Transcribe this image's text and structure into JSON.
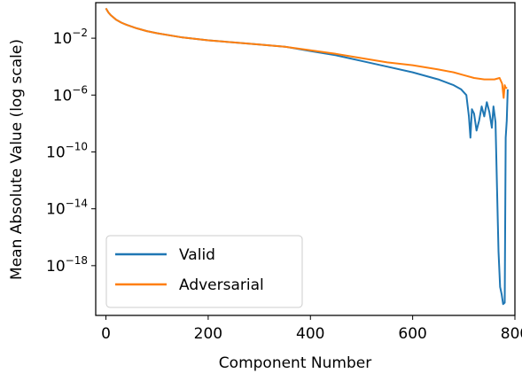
{
  "chart_data": {
    "type": "line",
    "title": "",
    "xlabel": "Component Number",
    "ylabel": "Mean Absolute Value (log scale)",
    "y_scale": "log",
    "xlim": [
      -20,
      800
    ],
    "ylim_exp": [
      -21.5,
      0.5
    ],
    "x_ticks": [
      0,
      200,
      400,
      600,
      800
    ],
    "y_ticks": [
      {
        "exp": -2,
        "base": "10",
        "power": "−2"
      },
      {
        "exp": -6,
        "base": "10",
        "power": "−6"
      },
      {
        "exp": -10,
        "base": "10",
        "power": "−10"
      },
      {
        "exp": -14,
        "base": "10",
        "power": "−14"
      },
      {
        "exp": -18,
        "base": "10",
        "power": "−18"
      }
    ],
    "grid": false,
    "legend_position": "lower-left",
    "series": [
      {
        "name": "Valid",
        "color": "#1f77b4",
        "points": [
          [
            0,
            0.1
          ],
          [
            5,
            -0.2
          ],
          [
            10,
            -0.4
          ],
          [
            20,
            -0.7
          ],
          [
            30,
            -0.9
          ],
          [
            40,
            -1.05
          ],
          [
            60,
            -1.3
          ],
          [
            80,
            -1.5
          ],
          [
            100,
            -1.65
          ],
          [
            150,
            -1.95
          ],
          [
            200,
            -2.15
          ],
          [
            250,
            -2.3
          ],
          [
            300,
            -2.45
          ],
          [
            350,
            -2.6
          ],
          [
            400,
            -2.9
          ],
          [
            450,
            -3.2
          ],
          [
            500,
            -3.6
          ],
          [
            550,
            -4.0
          ],
          [
            600,
            -4.4
          ],
          [
            650,
            -4.9
          ],
          [
            680,
            -5.3
          ],
          [
            695,
            -5.6
          ],
          [
            705,
            -6.0
          ],
          [
            710,
            -7.5
          ],
          [
            713,
            -9.0
          ],
          [
            716,
            -7.0
          ],
          [
            720,
            -7.3
          ],
          [
            725,
            -8.5
          ],
          [
            730,
            -7.8
          ],
          [
            735,
            -6.8
          ],
          [
            740,
            -7.5
          ],
          [
            745,
            -6.5
          ],
          [
            750,
            -7.2
          ],
          [
            755,
            -8.3
          ],
          [
            758,
            -6.8
          ],
          [
            762,
            -7.9
          ],
          [
            765,
            -12.5
          ],
          [
            768,
            -17.0
          ],
          [
            771,
            -19.5
          ],
          [
            774,
            -20.0
          ],
          [
            777,
            -20.7
          ],
          [
            780,
            -20.6
          ],
          [
            782,
            -9.0
          ],
          [
            784,
            -7.8
          ],
          [
            786,
            -5.6
          ]
        ]
      },
      {
        "name": "Adversarial",
        "color": "#ff7f0e",
        "points": [
          [
            0,
            0.1
          ],
          [
            5,
            -0.2
          ],
          [
            10,
            -0.4
          ],
          [
            20,
            -0.7
          ],
          [
            30,
            -0.9
          ],
          [
            40,
            -1.05
          ],
          [
            60,
            -1.3
          ],
          [
            80,
            -1.5
          ],
          [
            100,
            -1.65
          ],
          [
            150,
            -1.95
          ],
          [
            200,
            -2.15
          ],
          [
            250,
            -2.3
          ],
          [
            300,
            -2.45
          ],
          [
            350,
            -2.6
          ],
          [
            400,
            -2.85
          ],
          [
            450,
            -3.1
          ],
          [
            500,
            -3.4
          ],
          [
            550,
            -3.7
          ],
          [
            600,
            -3.9
          ],
          [
            650,
            -4.2
          ],
          [
            680,
            -4.4
          ],
          [
            700,
            -4.6
          ],
          [
            720,
            -4.8
          ],
          [
            740,
            -4.9
          ],
          [
            760,
            -4.9
          ],
          [
            770,
            -4.8
          ],
          [
            775,
            -5.2
          ],
          [
            778,
            -6.2
          ],
          [
            780,
            -5.3
          ],
          [
            782,
            -5.5
          ],
          [
            785,
            -5.5
          ]
        ]
      }
    ]
  }
}
